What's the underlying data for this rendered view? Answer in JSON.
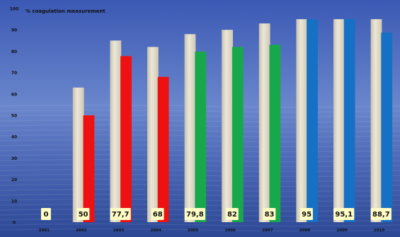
{
  "chart_data": {
    "type": "bar",
    "title": "% coagulation measurement",
    "categories": [
      "2001",
      "2002",
      "2003",
      "2004",
      "2005",
      "2006",
      "2007",
      "2008",
      "2009",
      "2010"
    ],
    "series": [
      {
        "values": [
          null,
          63,
          85,
          82,
          88,
          90,
          93,
          95,
          95,
          95
        ],
        "color": "#dcd6c4"
      },
      {
        "values": [
          0,
          50,
          77.7,
          68,
          79.8,
          82,
          83,
          95,
          95.1,
          88.7
        ],
        "color_by_point": [
          "#ee1111",
          "#ee1111",
          "#ee1111",
          "#ee1111",
          "#18a84c",
          "#18a84c",
          "#18a84c",
          "#1670c4",
          "#1670c4",
          "#1670c4"
        ]
      }
    ],
    "data_labels": [
      "0",
      "50",
      "77,7",
      "68",
      "79,8",
      "82",
      "83",
      "95",
      "95,1",
      "88,7"
    ],
    "yticks": [
      "0",
      "10",
      "20",
      "30",
      "40",
      "50",
      "60",
      "70",
      "80",
      "90",
      "100"
    ],
    "ylim": [
      0,
      100
    ],
    "grid": false,
    "legend": "none"
  },
  "colors": {
    "background_top": "#3b59b4",
    "background_mid": "#5a78c4",
    "background_bottom": "#2c4794",
    "label_box": "#fffcc4",
    "text": "#111111"
  }
}
